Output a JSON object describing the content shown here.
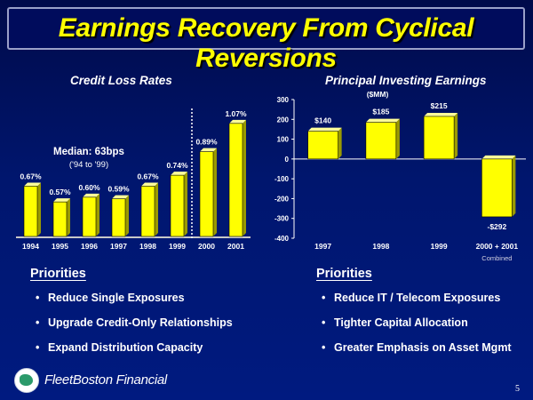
{
  "slide": {
    "title": "Earnings Recovery From Cyclical Reversions",
    "page_number": "5",
    "brand": "FleetBoston Financial",
    "colors": {
      "bar": "#ffff00",
      "bar_shade": "#9a9a00",
      "title": "#ffff00",
      "divider": "#ffffff"
    }
  },
  "left_panel": {
    "title": "Credit Loss Rates",
    "annotation_line1": "Median: 63bps",
    "annotation_line2": "('94 to '99)",
    "priorities_heading": "Priorities",
    "priorities": [
      "Reduce Single Exposures",
      "Upgrade Credit-Only Relationships",
      "Expand Distribution Capacity"
    ]
  },
  "right_panel": {
    "title": "Principal Investing Earnings",
    "subtitle": "($MM)",
    "priorities_heading": "Priorities",
    "priorities": [
      "Reduce IT / Telecom Exposures",
      "Tighter Capital Allocation",
      "Greater Emphasis on Asset Mgmt"
    ]
  },
  "chart_data": [
    {
      "type": "bar",
      "title": "Credit Loss Rates",
      "categories": [
        "1994",
        "1995",
        "1996",
        "1997",
        "1998",
        "1999",
        "2000",
        "2001"
      ],
      "values": [
        0.67,
        0.57,
        0.6,
        0.59,
        0.67,
        0.74,
        0.89,
        1.07
      ],
      "labels": [
        "0.67%",
        "0.57%",
        "0.60%",
        "0.59%",
        "0.67%",
        "0.74%",
        "0.89%",
        "1.07%"
      ],
      "unit": "%",
      "ylim": [
        0.35,
        1.12
      ],
      "divider_after": "1999",
      "grid": false
    },
    {
      "type": "bar",
      "title": "Principal Investing Earnings",
      "subtitle": "($MM)",
      "categories": [
        "1997",
        "1998",
        "1999",
        "2000 + 2001"
      ],
      "category_note": {
        "2000 + 2001": "Combined"
      },
      "values": [
        140,
        185,
        215,
        -292
      ],
      "labels": [
        "$140",
        "$185",
        "$215",
        "-$292"
      ],
      "yticks": [
        300,
        200,
        100,
        0,
        -100,
        -200,
        -300,
        -400
      ],
      "ylim": [
        -400,
        300
      ],
      "grid": false
    }
  ]
}
